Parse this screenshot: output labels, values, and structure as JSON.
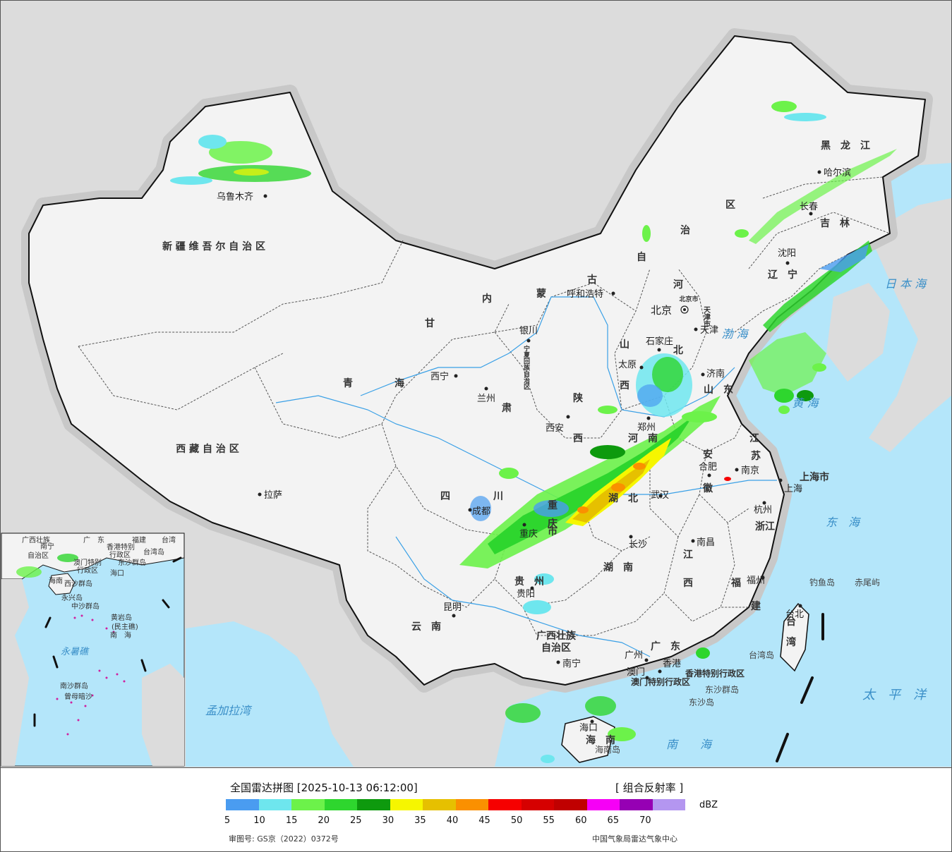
{
  "legend": {
    "title": "全国雷达拼图 [2025-10-13 06:12:00]",
    "product": "[ 组合反射率 ]",
    "unit": "dBZ",
    "ticks": [
      "5",
      "10",
      "15",
      "20",
      "25",
      "30",
      "35",
      "40",
      "45",
      "50",
      "55",
      "60",
      "65",
      "70"
    ],
    "colors": [
      "#4a9cf0",
      "#6ee6ee",
      "#6cf24a",
      "#2ed62e",
      "#0e9a0e",
      "#f6f600",
      "#e6c000",
      "#fa9000",
      "#f60000",
      "#d60000",
      "#c00000",
      "#f600f6",
      "#9600b4",
      "#b496f0"
    ],
    "approval": "审图号: GS京（2022）0372号",
    "source": "中国气象局雷达气象中心"
  },
  "colors": {
    "land": "#f3f3f3",
    "sea": "#b4e6fa",
    "outside": "#dcdcdc",
    "halo": "#c8c8c8",
    "city": "#222222",
    "province": "#333333",
    "sea_label": "#3a8fc8",
    "island_label": "#444444"
  },
  "provinces": [
    {
      "key": "xinjiang",
      "text": "新 疆 维 吾 尔 自 治 区"
    },
    {
      "key": "xizang",
      "text": "西 藏 自 治 区"
    },
    {
      "key": "qinghai1",
      "text": "青"
    },
    {
      "key": "qinghai2",
      "text": "海"
    },
    {
      "key": "gansu",
      "text": "甘"
    },
    {
      "key": "su",
      "text": "肃"
    },
    {
      "key": "nei",
      "text": "内"
    },
    {
      "key": "meng",
      "text": "蒙"
    },
    {
      "key": "gu",
      "text": "古"
    },
    {
      "key": "zi",
      "text": "自"
    },
    {
      "key": "zhi",
      "text": "治"
    },
    {
      "key": "qu",
      "text": "区"
    },
    {
      "key": "hlj",
      "text": "黑　龙　江"
    },
    {
      "key": "jilin",
      "text": "吉　林"
    },
    {
      "key": "liaoning",
      "text": "辽　宁"
    },
    {
      "key": "hebei1",
      "text": "河"
    },
    {
      "key": "hebei2",
      "text": "北"
    },
    {
      "key": "shanxi1",
      "text": "山"
    },
    {
      "key": "shanxi2",
      "text": "西"
    },
    {
      "key": "shandong",
      "text": "山　东"
    },
    {
      "key": "shaanxi1",
      "text": "陕"
    },
    {
      "key": "shaanxi2",
      "text": "西"
    },
    {
      "key": "henan",
      "text": "河　南"
    },
    {
      "key": "jiangsu1",
      "text": "江"
    },
    {
      "key": "jiangsu2",
      "text": "苏"
    },
    {
      "key": "anhui1",
      "text": "安"
    },
    {
      "key": "anhui2",
      "text": "徽"
    },
    {
      "key": "shanghai",
      "text": "上海市"
    },
    {
      "key": "hubei",
      "text": "湖　北"
    },
    {
      "key": "sichuan1",
      "text": "四"
    },
    {
      "key": "sichuan2",
      "text": "川"
    },
    {
      "key": "chongqing1",
      "text": "重"
    },
    {
      "key": "chongqing2",
      "text": "庆"
    },
    {
      "key": "chongqing3",
      "text": "市"
    },
    {
      "key": "zhejiang",
      "text": "浙江"
    },
    {
      "key": "jiangxi1",
      "text": "江"
    },
    {
      "key": "jiangxi2",
      "text": "西"
    },
    {
      "key": "hunan",
      "text": "湖　南"
    },
    {
      "key": "guizhou",
      "text": "贵　州"
    },
    {
      "key": "fujian1",
      "text": "福"
    },
    {
      "key": "fujian2",
      "text": "建"
    },
    {
      "key": "yunnan",
      "text": "云　南"
    },
    {
      "key": "guangxi1",
      "text": "广西壮族"
    },
    {
      "key": "guangxi2",
      "text": "自治区"
    },
    {
      "key": "guangdong",
      "text": "广　东"
    },
    {
      "key": "taiwan1",
      "text": "台"
    },
    {
      "key": "taiwan2",
      "text": "湾"
    },
    {
      "key": "hainan",
      "text": "海　南"
    },
    {
      "key": "hk",
      "text": "香港特别行政区"
    },
    {
      "key": "macau",
      "text": "澳门特别行政区"
    },
    {
      "key": "ningxia",
      "text": "宁夏回族自治区"
    },
    {
      "key": "tianjin",
      "text": "天津市"
    },
    {
      "key": "beijingshi",
      "text": "北京市"
    }
  ],
  "cities": [
    {
      "key": "urumqi",
      "name": "乌鲁木齐"
    },
    {
      "key": "lhasa",
      "name": "拉萨"
    },
    {
      "key": "xining",
      "name": "西宁"
    },
    {
      "key": "lanzhou",
      "name": "兰州"
    },
    {
      "key": "yinchuan",
      "name": "银川"
    },
    {
      "key": "hohhot",
      "name": "呼和浩特"
    },
    {
      "key": "beijing",
      "name": "北京"
    },
    {
      "key": "tianjin",
      "name": "天津"
    },
    {
      "key": "shijiazhuang",
      "name": "石家庄"
    },
    {
      "key": "taiyuan",
      "name": "太原"
    },
    {
      "key": "jinan",
      "name": "济南"
    },
    {
      "key": "zhengzhou",
      "name": "郑州"
    },
    {
      "key": "xian",
      "name": "西安"
    },
    {
      "key": "hefei",
      "name": "合肥"
    },
    {
      "key": "nanjing",
      "name": "南京"
    },
    {
      "key": "shanghaicity",
      "name": "上海"
    },
    {
      "key": "hangzhou",
      "name": "杭州"
    },
    {
      "key": "wuhan",
      "name": "武汉"
    },
    {
      "key": "chengdu",
      "name": "成都"
    },
    {
      "key": "chongqingcity",
      "name": "重庆"
    },
    {
      "key": "changsha",
      "name": "长沙"
    },
    {
      "key": "nanchang",
      "name": "南昌"
    },
    {
      "key": "fuzhou",
      "name": "福州"
    },
    {
      "key": "guiyang",
      "name": "贵阳"
    },
    {
      "key": "kunming",
      "name": "昆明"
    },
    {
      "key": "nanning",
      "name": "南宁"
    },
    {
      "key": "guangzhou",
      "name": "广州"
    },
    {
      "key": "hongkong",
      "name": "香港"
    },
    {
      "key": "macaucity",
      "name": "澳门"
    },
    {
      "key": "haikou",
      "name": "海口"
    },
    {
      "key": "taibei",
      "name": "台北"
    },
    {
      "key": "harbin",
      "name": "哈尔滨"
    },
    {
      "key": "changchun",
      "name": "长春"
    },
    {
      "key": "shenyang",
      "name": "沈阳"
    }
  ],
  "seas": [
    {
      "key": "japan",
      "text": "日 本 海"
    },
    {
      "key": "bohai",
      "text": "渤 海"
    },
    {
      "key": "huanghai",
      "text": "黄 海"
    },
    {
      "key": "donghai",
      "text": "东　海"
    },
    {
      "key": "taipingyang",
      "text": "太　平　洋"
    },
    {
      "key": "nanhai",
      "text": "南　　海"
    },
    {
      "key": "bengal",
      "text": "孟加拉湾"
    }
  ],
  "islands": [
    {
      "key": "diaoyu",
      "text": "钓鱼岛"
    },
    {
      "key": "chiwei",
      "text": "赤尾屿"
    },
    {
      "key": "dongsha1",
      "text": "东沙群岛"
    },
    {
      "key": "dongsha2",
      "text": "东沙岛"
    },
    {
      "key": "taiwandao",
      "text": "台湾岛"
    },
    {
      "key": "hainandao",
      "text": "海南岛"
    }
  ],
  "inset": {
    "labels": [
      {
        "key": "i_gx",
        "text": "广西壮族"
      },
      {
        "key": "i_gx2",
        "text": "自治区"
      },
      {
        "key": "i_nn",
        "text": "南宁"
      },
      {
        "key": "i_gd",
        "text": "广　东"
      },
      {
        "key": "i_fj",
        "text": "福建"
      },
      {
        "key": "i_tw",
        "text": "台湾"
      },
      {
        "key": "i_hk",
        "text": "香港特别"
      },
      {
        "key": "i_hk2",
        "text": "行政区"
      },
      {
        "key": "i_mo",
        "text": "澳门特别"
      },
      {
        "key": "i_mo2",
        "text": "行政区"
      },
      {
        "key": "i_tws",
        "text": "台湾岛"
      },
      {
        "key": "i_ds",
        "text": "东沙群岛"
      },
      {
        "key": "i_hk3",
        "text": "海口"
      },
      {
        "key": "i_hn",
        "text": "海南"
      },
      {
        "key": "i_xs",
        "text": "西沙群岛"
      },
      {
        "key": "i_yx",
        "text": "永兴岛"
      },
      {
        "key": "i_zs",
        "text": "中沙群岛"
      },
      {
        "key": "i_hy",
        "text": "黄岩岛"
      },
      {
        "key": "i_hy2",
        "text": "(民主礁)"
      },
      {
        "key": "i_nh",
        "text": "南　海"
      },
      {
        "key": "i_ys",
        "text": "永暑礁"
      },
      {
        "key": "i_ns",
        "text": "南沙群岛"
      },
      {
        "key": "i_zm",
        "text": "曾母暗沙"
      }
    ]
  }
}
